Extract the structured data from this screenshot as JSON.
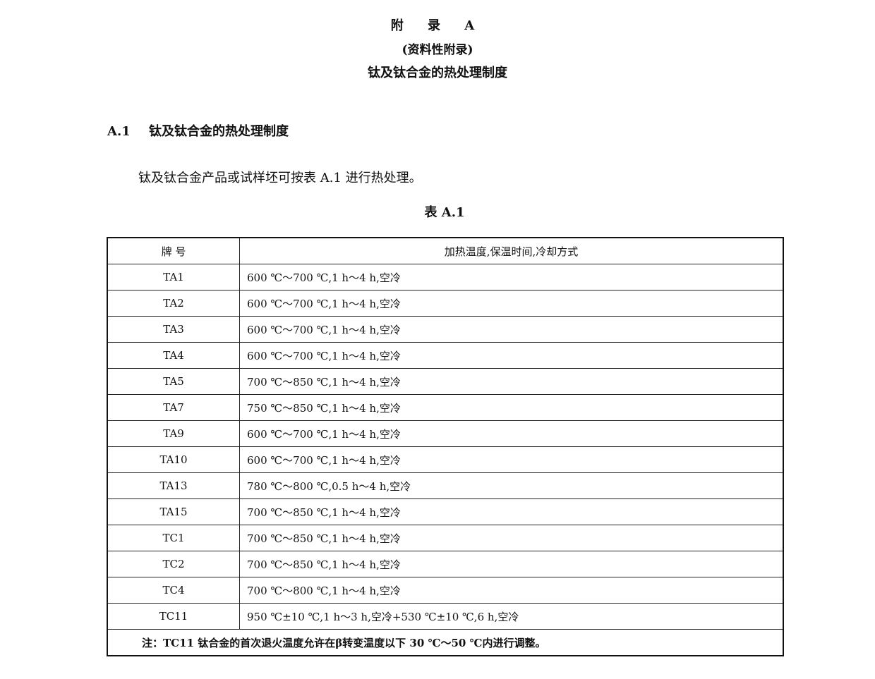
{
  "heading": {
    "appendix": "附 录 A",
    "type": "(资料性附录)",
    "title": "钛及钛合金的热处理制度"
  },
  "section": {
    "number": "A.1",
    "title": "钛及钛合金的热处理制度"
  },
  "paragraph": "钛及钛合金产品或试样坯可按表 A.1 进行热处理。",
  "table": {
    "caption": "表 A.1",
    "headers": [
      "牌  号",
      "加热温度,保温时间,冷却方式"
    ],
    "rows": [
      [
        "TA1",
        "600 ℃～700 ℃,1 h～4 h,空冷"
      ],
      [
        "TA2",
        "600 ℃～700 ℃,1 h～4 h,空冷"
      ],
      [
        "TA3",
        "600 ℃～700 ℃,1 h～4 h,空冷"
      ],
      [
        "TA4",
        "600 ℃～700 ℃,1 h～4 h,空冷"
      ],
      [
        "TA5",
        "700 ℃～850 ℃,1 h～4 h,空冷"
      ],
      [
        "TA7",
        "750 ℃～850 ℃,1 h～4 h,空冷"
      ],
      [
        "TA9",
        "600 ℃～700 ℃,1 h～4 h,空冷"
      ],
      [
        "TA10",
        "600 ℃～700 ℃,1 h～4 h,空冷"
      ],
      [
        "TA13",
        "780 ℃～800 ℃,0.5 h～4 h,空冷"
      ],
      [
        "TA15",
        "700 ℃～850 ℃,1 h～4 h,空冷"
      ],
      [
        "TC1",
        "700 ℃～850 ℃,1 h～4 h,空冷"
      ],
      [
        "TC2",
        "700 ℃～850 ℃,1 h～4 h,空冷"
      ],
      [
        "TC4",
        "700 ℃～800 ℃,1 h～4 h,空冷"
      ],
      [
        "TC11",
        "950 ℃±10 ℃,1 h～3 h,空冷+530 ℃±10 ℃,6 h,空冷"
      ]
    ],
    "note": "注：TC11 钛合金的首次退火温度允许在β转变温度以下 30 ℃～50 ℃内进行调整。"
  }
}
